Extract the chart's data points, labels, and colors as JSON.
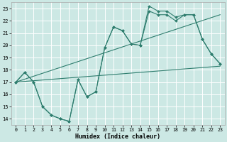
{
  "xlabel": "Humidex (Indice chaleur)",
  "bg_color": "#cce8e4",
  "grid_color": "#ffffff",
  "line_color": "#2e7d6e",
  "xlim": [
    -0.5,
    23.5
  ],
  "ylim": [
    13.5,
    23.5
  ],
  "xticks": [
    0,
    1,
    2,
    3,
    4,
    5,
    6,
    7,
    8,
    9,
    10,
    11,
    12,
    13,
    14,
    15,
    16,
    17,
    18,
    19,
    20,
    21,
    22,
    23
  ],
  "yticks": [
    14,
    15,
    16,
    17,
    18,
    19,
    20,
    21,
    22,
    23
  ],
  "series1_x": [
    0,
    1,
    2,
    3,
    4,
    5,
    6,
    7,
    8,
    9,
    10,
    11,
    12,
    13,
    14,
    15,
    16,
    17,
    18,
    19,
    20,
    21,
    22,
    23
  ],
  "series1_y": [
    17.0,
    17.8,
    17.0,
    15.0,
    14.3,
    14.0,
    13.8,
    17.2,
    15.8,
    16.2,
    19.8,
    21.5,
    21.2,
    20.1,
    20.0,
    23.2,
    22.8,
    22.8,
    22.3,
    22.5,
    22.5,
    20.5,
    19.3,
    18.5
  ],
  "series2_x": [
    0,
    1,
    2,
    3,
    4,
    5,
    6,
    7,
    8,
    9,
    10,
    11,
    12,
    13,
    14,
    15,
    16,
    17,
    18,
    19,
    20,
    21,
    22,
    23
  ],
  "series2_y": [
    17.0,
    17.8,
    17.0,
    15.0,
    14.3,
    14.0,
    13.8,
    17.2,
    15.8,
    16.2,
    19.8,
    21.5,
    21.2,
    20.1,
    20.0,
    22.8,
    22.5,
    22.5,
    22.0,
    22.5,
    22.5,
    20.5,
    19.3,
    18.5
  ],
  "trend1_x": [
    0,
    23
  ],
  "trend1_y": [
    17.0,
    18.3
  ],
  "trend2_x": [
    0,
    23
  ],
  "trend2_y": [
    17.0,
    22.5
  ]
}
